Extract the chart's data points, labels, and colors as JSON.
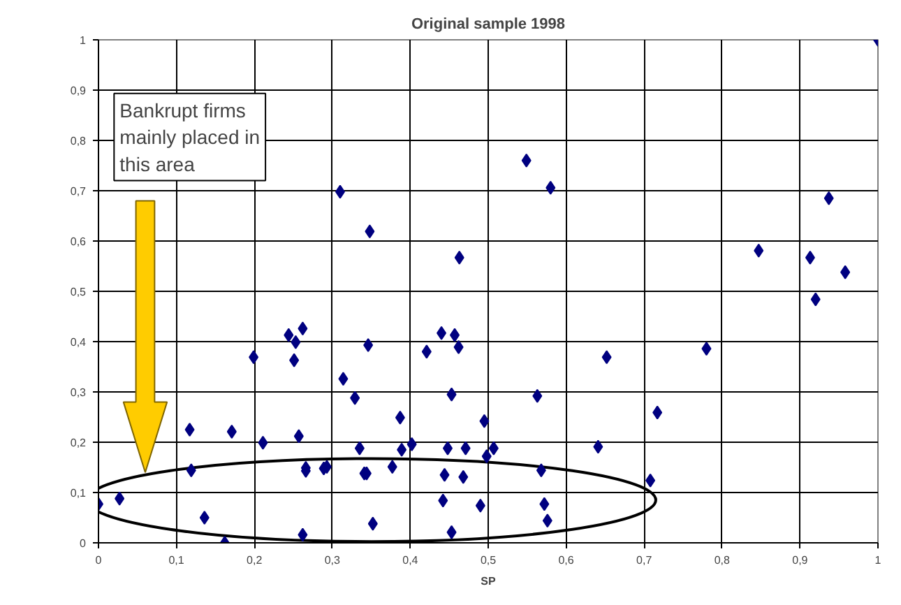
{
  "chart_data": {
    "type": "scatter",
    "title": "Original sample 1998",
    "xlabel": "SP",
    "annotations": [
      "Bankrupt firms mainly placed in this area"
    ],
    "x": [
      0,
      0.027,
      0.117,
      0.119,
      0.136,
      0.162,
      0.171,
      0.199,
      0.211,
      0.244,
      0.253,
      0.251,
      0.262,
      0.257,
      0.262,
      0.266,
      0.266,
      0.289,
      0.293,
      0.314,
      0.329,
      0.335,
      0.341,
      0.344,
      0.346,
      0.352,
      0.377,
      0.387,
      0.389,
      0.402,
      0.421,
      0.44,
      0.442,
      0.444,
      0.448,
      0.453,
      0.453,
      0.457,
      0.462,
      0.468,
      0.471,
      0.49,
      0.495,
      0.498,
      0.507,
      0.563,
      0.568,
      0.572,
      0.576,
      0.641,
      0.652,
      0.708,
      0.717,
      0.78,
      0.92,
      0.958,
      0.31,
      0.348,
      0.463,
      0.549,
      0.58,
      0.847,
      0.913,
      0.937,
      1.0
    ],
    "values": [
      0.077,
      0.088,
      0.225,
      0.144,
      0.05,
      0.0,
      0.221,
      0.369,
      0.199,
      0.413,
      0.399,
      0.363,
      0.426,
      0.212,
      0.016,
      0.149,
      0.143,
      0.148,
      0.151,
      0.326,
      0.288,
      0.188,
      0.138,
      0.138,
      0.393,
      0.038,
      0.151,
      0.249,
      0.185,
      0.196,
      0.38,
      0.417,
      0.084,
      0.135,
      0.188,
      0.295,
      0.021,
      0.413,
      0.389,
      0.131,
      0.188,
      0.074,
      0.242,
      0.172,
      0.188,
      0.292,
      0.144,
      0.077,
      0.044,
      0.191,
      0.369,
      0.124,
      0.259,
      0.386,
      0.484,
      0.538,
      0.698,
      0.619,
      0.567,
      0.76,
      0.706,
      0.581,
      0.567,
      0.685,
      1.0
    ],
    "color": "#000080",
    "marker": "diamond",
    "grid": true,
    "xlim": [
      0,
      1
    ],
    "ylim": [
      0,
      1
    ],
    "xticks": [
      0,
      {
        "value": 0.1,
        "label": "0,1"
      },
      {
        "value": 0.2,
        "label": "0,2"
      },
      {
        "value": 0.3,
        "label": "0,3"
      },
      {
        "value": 0.4,
        "label": "0,4"
      },
      {
        "value": 0.5,
        "label": "0,5"
      },
      {
        "value": 0.6,
        "label": "0,6"
      },
      {
        "value": 0.7,
        "label": "0,7"
      },
      {
        "value": 0.8,
        "label": "0,8"
      },
      {
        "value": 0.9,
        "label": "0,9"
      },
      1
    ],
    "yticks": [
      0,
      {
        "value": 0.1,
        "label": "0,1"
      },
      {
        "value": 0.2,
        "label": "0,2"
      },
      {
        "value": 0.3,
        "label": "0,3"
      },
      {
        "value": 0.4,
        "label": "0,4"
      },
      {
        "value": 0.5,
        "label": "0,5"
      },
      {
        "value": 0.6,
        "label": "0,6"
      },
      {
        "value": 0.7,
        "label": "0,7"
      },
      {
        "value": 0.8,
        "label": "0,8"
      },
      {
        "value": 0.9,
        "label": "0,9"
      },
      1
    ]
  }
}
